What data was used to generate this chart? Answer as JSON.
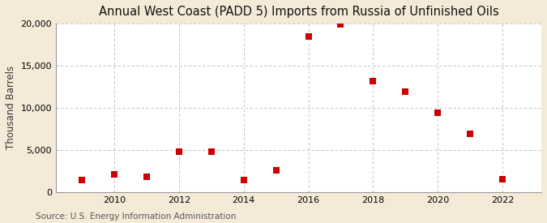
{
  "title": "Annual West Coast (PADD 5) Imports from Russia of Unfinished Oils",
  "ylabel": "Thousand Barrels",
  "source": "Source: U.S. Energy Information Administration",
  "years": [
    2009,
    2010,
    2011,
    2012,
    2013,
    2014,
    2015,
    2016,
    2017,
    2018,
    2019,
    2020,
    2021,
    2022
  ],
  "values": [
    1400,
    2100,
    1800,
    4800,
    4800,
    1400,
    2600,
    18400,
    19900,
    13100,
    11900,
    9400,
    6900,
    1500
  ],
  "marker_color": "#cc0000",
  "fig_bg_color": "#f5ead8",
  "plot_bg_color": "#ffffff",
  "grid_color": "#b8b8b8",
  "xlim": [
    2008.2,
    2023.2
  ],
  "ylim": [
    0,
    20000
  ],
  "yticks": [
    0,
    5000,
    10000,
    15000,
    20000
  ],
  "xticks": [
    2010,
    2012,
    2014,
    2016,
    2018,
    2020,
    2022
  ],
  "title_fontsize": 10.5,
  "label_fontsize": 8.5,
  "tick_fontsize": 8,
  "source_fontsize": 7.5,
  "marker_size": 28
}
